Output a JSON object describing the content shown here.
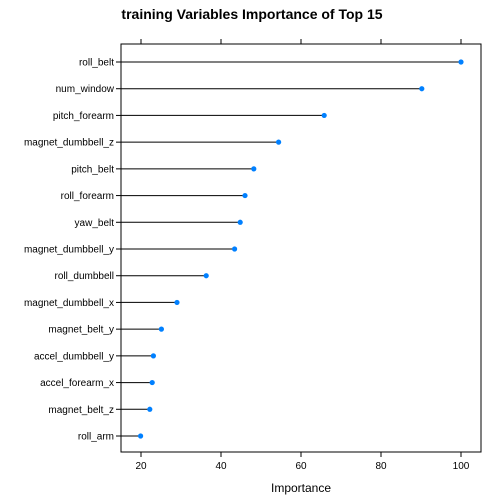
{
  "chart_data": {
    "type": "dot",
    "title": "training Variables Importance of Top 15",
    "xlabel": "Importance",
    "ylabel": "",
    "xlim": [
      15,
      105
    ],
    "xticks": [
      20,
      40,
      60,
      80,
      100
    ],
    "grid": false,
    "categories": [
      "roll_belt",
      "num_window",
      "pitch_forearm",
      "magnet_dumbbell_z",
      "pitch_belt",
      "roll_forearm",
      "yaw_belt",
      "magnet_dumbbell_y",
      "roll_dumbbell",
      "magnet_dumbbell_x",
      "magnet_belt_y",
      "accel_dumbbell_y",
      "accel_forearm_x",
      "magnet_belt_z",
      "roll_arm"
    ],
    "values": [
      100,
      90.2,
      65.8,
      54.4,
      48.2,
      46.0,
      44.8,
      43.4,
      36.3,
      29.0,
      25.1,
      23.1,
      22.8,
      22.2,
      19.9
    ],
    "point_color": "#0080ff",
    "line_color": "#000000"
  }
}
